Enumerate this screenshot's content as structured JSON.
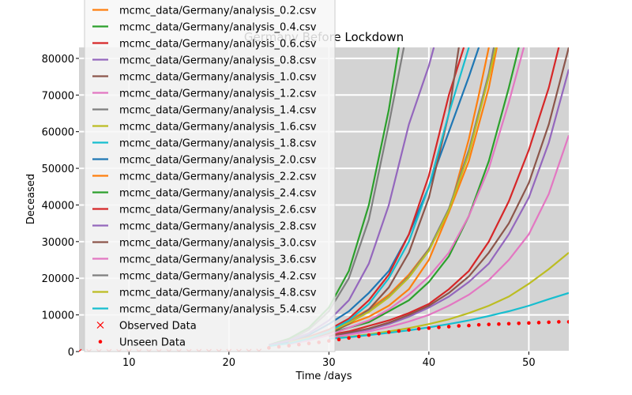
{
  "chart_data": {
    "type": "line",
    "title": "Germany Before Lockdown",
    "xlabel": "Time /days",
    "ylabel": "Deceased",
    "xlim": [
      5,
      54
    ],
    "ylim": [
      0,
      83000
    ],
    "xticks": [
      10,
      20,
      30,
      40,
      50
    ],
    "yticks": [
      0,
      10000,
      20000,
      30000,
      40000,
      50000,
      60000,
      70000,
      80000
    ],
    "grid": true,
    "background": "#d3d3d3",
    "legend_position": "top-left",
    "series": [
      {
        "name": "mcmc_data/Germany/analysis_0.2.csv",
        "color": "#ff7f0e",
        "x": [
          30,
          32,
          34,
          36,
          38,
          40,
          42,
          44,
          45,
          46
        ],
        "y": [
          6000,
          7500,
          9500,
          12500,
          17000,
          25000,
          38000,
          58000,
          70000,
          83000
        ]
      },
      {
        "name": "mcmc_data/Germany/analysis_0.4.csv",
        "color": "#2ca02c",
        "x": [
          30,
          32,
          34,
          36,
          38,
          40,
          42,
          44,
          46,
          48,
          49
        ],
        "y": [
          5000,
          6500,
          8000,
          11000,
          14000,
          19000,
          26000,
          37000,
          52000,
          72000,
          83000
        ]
      },
      {
        "name": "mcmc_data/Germany/analysis_0.6.csv",
        "color": "#d62728",
        "x": [
          30,
          32,
          34,
          36,
          38,
          40,
          42,
          44,
          46,
          48,
          50,
          52,
          53
        ],
        "y": [
          4500,
          5500,
          7000,
          8500,
          10500,
          13000,
          17000,
          22000,
          30000,
          41000,
          55000,
          72000,
          83000
        ]
      },
      {
        "name": "mcmc_data/Germany/analysis_0.8.csv",
        "color": "#9467bd",
        "x": [
          30,
          32,
          34,
          36,
          38,
          40,
          42,
          44,
          46,
          48,
          50,
          52,
          54
        ],
        "y": [
          4000,
          5000,
          6000,
          7500,
          9500,
          12000,
          15000,
          19000,
          24000,
          32000,
          42000,
          57000,
          77000
        ]
      },
      {
        "name": "mcmc_data/Germany/analysis_1.0.csv",
        "color": "#8c564b",
        "x": [
          30,
          32,
          34,
          36,
          38,
          40,
          42,
          44,
          46,
          48,
          50,
          52,
          54
        ],
        "y": [
          4200,
          5200,
          6300,
          7900,
          10000,
          12500,
          16000,
          20500,
          27000,
          35000,
          46000,
          62000,
          83000
        ]
      },
      {
        "name": "mcmc_data/Germany/analysis_1.2.csv",
        "color": "#e377c2",
        "x": [
          30,
          32,
          34,
          36,
          38,
          40,
          42,
          44,
          46,
          48,
          50,
          52,
          54
        ],
        "y": [
          3800,
          4600,
          5500,
          6700,
          8200,
          10000,
          12500,
          15500,
          19500,
          25000,
          32000,
          43000,
          59000
        ]
      },
      {
        "name": "mcmc_data/Germany/analysis_1.4.csv",
        "color": "#7f7f7f",
        "x": [
          24,
          26,
          28,
          30,
          32,
          34,
          36,
          37.5
        ],
        "y": [
          1800,
          3000,
          6000,
          11000,
          20000,
          36000,
          62000,
          83000
        ]
      },
      {
        "name": "mcmc_data/Germany/analysis_1.6.csv",
        "color": "#bcbd22",
        "x": [
          30,
          32,
          34,
          36,
          38,
          40,
          42,
          44,
          46,
          48,
          50,
          52,
          54
        ],
        "y": [
          3500,
          4000,
          4700,
          5500,
          6400,
          7500,
          8800,
          10500,
          12500,
          15000,
          18500,
          22500,
          27000
        ]
      },
      {
        "name": "mcmc_data/Germany/analysis_1.8.csv",
        "color": "#17becf",
        "x": [
          30,
          32,
          34,
          36,
          38,
          40,
          42,
          44,
          46,
          48,
          50,
          52,
          54
        ],
        "y": [
          3500,
          3900,
          4500,
          5100,
          5800,
          6600,
          7500,
          8500,
          9700,
          11000,
          12500,
          14300,
          16000
        ]
      },
      {
        "name": "mcmc_data/Germany/analysis_2.0.csv",
        "color": "#1f77b4",
        "x": [
          24,
          26,
          28,
          30,
          32,
          34,
          36,
          38,
          40,
          42,
          44,
          45
        ],
        "y": [
          1500,
          2500,
          4500,
          7500,
          11000,
          16000,
          22000,
          32000,
          45000,
          60000,
          75000,
          83000
        ]
      },
      {
        "name": "mcmc_data/Germany/analysis_2.2.csv",
        "color": "#ff7f0e",
        "x": [
          26,
          28,
          30,
          32,
          34,
          36,
          38,
          40,
          42,
          44,
          46,
          46.8
        ],
        "y": [
          2500,
          4000,
          6000,
          8500,
          11500,
          15500,
          21000,
          28000,
          38000,
          52000,
          72000,
          83000
        ]
      },
      {
        "name": "mcmc_data/Germany/analysis_2.4.csv",
        "color": "#2ca02c",
        "x": [
          24,
          26,
          28,
          30,
          32,
          34,
          36,
          37
        ],
        "y": [
          1800,
          3500,
          6500,
          12000,
          22000,
          40000,
          66000,
          83000
        ]
      },
      {
        "name": "mcmc_data/Germany/analysis_2.6.csv",
        "color": "#d62728",
        "x": [
          26,
          28,
          30,
          32,
          34,
          36,
          38,
          40,
          42,
          43.5
        ],
        "y": [
          2500,
          4000,
          6000,
          9000,
          14000,
          21000,
          32000,
          48000,
          70000,
          83000
        ]
      },
      {
        "name": "mcmc_data/Germany/analysis_2.8.csv",
        "color": "#9467bd",
        "x": [
          24,
          26,
          28,
          30,
          32,
          34,
          36,
          38,
          40,
          40.5
        ],
        "y": [
          1800,
          3000,
          5000,
          8500,
          14000,
          24000,
          40000,
          62000,
          78000,
          83000
        ]
      },
      {
        "name": "mcmc_data/Germany/analysis_3.0.csv",
        "color": "#8c564b",
        "x": [
          26,
          28,
          30,
          32,
          34,
          36,
          38,
          40,
          42,
          43
        ],
        "y": [
          2200,
          3300,
          5000,
          7500,
          11500,
          17500,
          27000,
          42000,
          65000,
          83000
        ]
      },
      {
        "name": "mcmc_data/Germany/analysis_3.6.csv",
        "color": "#e377c2",
        "x": [
          26,
          28,
          30,
          32,
          34,
          36,
          38,
          40,
          42,
          44,
          46,
          48,
          49.5
        ],
        "y": [
          2000,
          3000,
          4500,
          6500,
          8500,
          11500,
          15500,
          20500,
          27000,
          37000,
          50000,
          68000,
          83000
        ]
      },
      {
        "name": "mcmc_data/Germany/analysis_4.2.csv",
        "color": "#7f7f7f",
        "x": [
          26,
          28,
          30,
          32,
          34,
          36,
          38,
          40,
          42,
          44,
          46,
          46.5
        ],
        "y": [
          2500,
          3800,
          5500,
          8000,
          11000,
          15000,
          20500,
          28000,
          39000,
          55000,
          76000,
          83000
        ]
      },
      {
        "name": "mcmc_data/Germany/analysis_4.8.csv",
        "color": "#bcbd22",
        "x": [
          26,
          28,
          30,
          32,
          34,
          36,
          38,
          40,
          42,
          44,
          46,
          46.7
        ],
        "y": [
          2400,
          3700,
          5400,
          7800,
          10800,
          14800,
          20200,
          27500,
          38500,
          54000,
          75000,
          83000
        ]
      },
      {
        "name": "mcmc_data/Germany/analysis_5.4.csv",
        "color": "#17becf",
        "x": [
          24,
          26,
          28,
          30,
          32,
          34,
          36,
          38,
          40,
          42,
          44
        ],
        "y": [
          1500,
          2200,
          3500,
          5500,
          8500,
          13000,
          20000,
          30000,
          45000,
          65000,
          83000
        ]
      }
    ],
    "observed": {
      "name": "Observed Data",
      "color": "#ff0000",
      "marker": "x",
      "x": [
        5,
        6,
        7,
        8,
        9,
        10,
        11,
        12,
        13,
        14,
        15,
        16,
        17,
        18,
        19,
        20,
        21,
        22,
        23
      ],
      "y": [
        0,
        0,
        0,
        0,
        0,
        0,
        0,
        0,
        0,
        0,
        0,
        2,
        3,
        5,
        9,
        14,
        25,
        40,
        60
      ]
    },
    "unseen": {
      "name": "Unseen Data",
      "color": "#ff0000",
      "marker": "dot",
      "x": [
        24,
        25,
        26,
        27,
        28,
        29,
        30,
        31,
        32,
        33,
        34,
        35,
        36,
        37,
        38,
        39,
        40,
        41,
        42,
        43,
        44,
        45,
        46,
        47,
        48,
        49,
        50,
        51,
        52,
        53,
        54
      ],
      "y": [
        1000,
        1300,
        1600,
        1900,
        2200,
        2500,
        2900,
        3300,
        3700,
        4100,
        4500,
        4900,
        5300,
        5600,
        5900,
        6200,
        6400,
        6600,
        6800,
        7000,
        7100,
        7300,
        7400,
        7500,
        7600,
        7700,
        7800,
        7900,
        8000,
        8100,
        8100
      ]
    }
  }
}
